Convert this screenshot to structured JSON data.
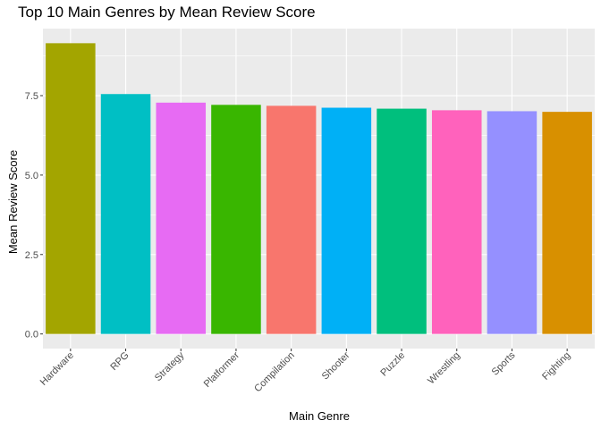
{
  "chart_data": {
    "type": "bar",
    "title": "Top 10 Main Genres by Mean Review Score",
    "xlabel": "Main Genre",
    "ylabel": "Mean Review Score",
    "categories": [
      "Hardware",
      "RPG",
      "Strategy",
      "Platformer",
      "Compilation",
      "Shooter",
      "Puzzle",
      "Wrestling",
      "Sports",
      "Fighting"
    ],
    "values": [
      9.15,
      7.55,
      7.28,
      7.21,
      7.18,
      7.12,
      7.09,
      7.04,
      7.01,
      6.99
    ],
    "colors": [
      "#A3A500",
      "#00BFC4",
      "#E76BF3",
      "#39B600",
      "#F8766D",
      "#00B0F6",
      "#00BF7D",
      "#FF62BC",
      "#9590FF",
      "#D89000"
    ],
    "yticks": [
      0.0,
      2.5,
      5.0,
      7.5
    ],
    "ytick_labels": [
      "0.0",
      "2.5",
      "5.0",
      "7.5"
    ],
    "ylim": [
      -0.46,
      9.61
    ],
    "panel_background": "#EBEBEB",
    "grid": true,
    "legend": "none"
  }
}
